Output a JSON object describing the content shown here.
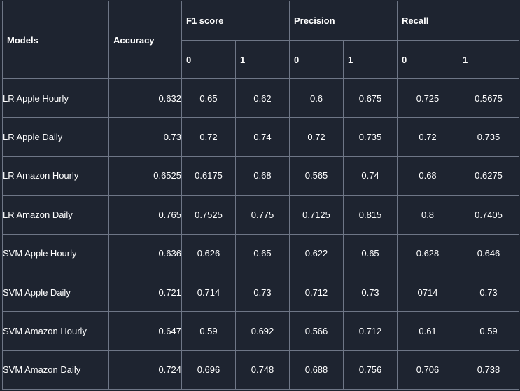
{
  "headers": {
    "models": "Models",
    "accuracy": "Accuracy",
    "f1": "F1 score",
    "precision": "Precision",
    "recall": "Recall",
    "class0": "0",
    "class1": "1"
  },
  "rows": [
    {
      "model": "LR Apple Hourly",
      "accuracy": "0.632",
      "f1_0": "0.65",
      "f1_1": "0.62",
      "p_0": "0.6",
      "p_1": "0.675",
      "r_0": "0.725",
      "r_1": "0.5675"
    },
    {
      "model": "LR Apple Daily",
      "accuracy": "0.73",
      "f1_0": "0.72",
      "f1_1": "0.74",
      "p_0": "0.72",
      "p_1": "0.735",
      "r_0": "0.72",
      "r_1": "0.735"
    },
    {
      "model": "LR Amazon Hourly",
      "accuracy": "0.6525",
      "f1_0": "0.6175",
      "f1_1": "0.68",
      "p_0": "0.565",
      "p_1": "0.74",
      "r_0": "0.68",
      "r_1": "0.6275"
    },
    {
      "model": "LR Amazon Daily",
      "accuracy": "0.765",
      "f1_0": "0.7525",
      "f1_1": "0.775",
      "p_0": "0.7125",
      "p_1": "0.815",
      "r_0": "0.8",
      "r_1": "0.7405"
    },
    {
      "model": "SVM Apple Hourly",
      "accuracy": "0.636",
      "f1_0": "0.626",
      "f1_1": "0.65",
      "p_0": "0.622",
      "p_1": "0.65",
      "r_0": "0.628",
      "r_1": "0.646"
    },
    {
      "model": "SVM Apple Daily",
      "accuracy": "0.721",
      "f1_0": "0.714",
      "f1_1": "0.73",
      "p_0": "0.712",
      "p_1": "0.73",
      "r_0": "0714",
      "r_1": "0.73"
    },
    {
      "model": "SVM Amazon Hourly",
      "accuracy": "0.647",
      "f1_0": "0.59",
      "f1_1": "0.692",
      "p_0": "0.566",
      "p_1": "0.712",
      "r_0": "0.61",
      "r_1": "0.59"
    },
    {
      "model": "SVM Amazon Daily",
      "accuracy": "0.724",
      "f1_0": "0.696",
      "f1_1": "0.748",
      "p_0": "0.688",
      "p_1": "0.756",
      "r_0": "0.706",
      "r_1": "0.738"
    }
  ]
}
